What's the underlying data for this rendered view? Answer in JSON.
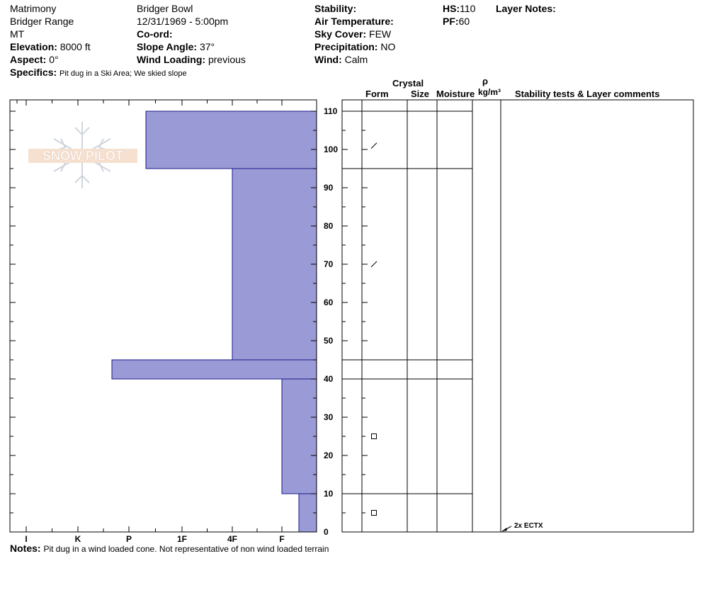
{
  "header": {
    "col1": {
      "location": "Matrimony",
      "range": "Bridger Range",
      "state": "MT",
      "elevation_label": "Elevation:",
      "elevation_value": "8000 ft",
      "aspect_label": "Aspect:",
      "aspect_value": "0°"
    },
    "col2": {
      "area": "Bridger Bowl",
      "datetime": "12/31/1969 - 5:00pm",
      "coord_label": "Co-ord:",
      "slope_label": "Slope Angle:",
      "slope_value": "37°",
      "wind_loading_label": "Wind Loading:",
      "wind_loading_value": "previous"
    },
    "col3": {
      "stability_label": "Stability:",
      "air_temp_label": "Air Temperature:",
      "sky_label": "Sky Cover:",
      "sky_value": "FEW",
      "precip_label": "Precipitation:",
      "precip_value": "NO",
      "wind_label": "Wind:",
      "wind_value": "Calm"
    },
    "col4": {
      "hs_label": "HS:",
      "hs_value": "110",
      "pf_label": "PF:",
      "pf_value": "60"
    },
    "layer_notes_label": "Layer Notes:",
    "specifics_label": "Specifics:",
    "specifics_value": "Pit dug in a Ski Area; We skied slope"
  },
  "logo_text": "SNOW PILOT",
  "table_headers": {
    "crystal": "Crystal",
    "form": "Form",
    "size": "Size",
    "moisture": "Moisture",
    "rho": "ρ",
    "density_unit": "kg/m³",
    "stability": "Stability tests & Layer comments"
  },
  "notes": {
    "label": "Notes:",
    "value": "Pit dug in a wind loaded cone. Not representative of non wind loaded terrain"
  },
  "chart_data": {
    "type": "bar",
    "title": "",
    "ylabel": "",
    "ylim": [
      0,
      113
    ],
    "hardness_scale": [
      "I",
      "K",
      "P",
      "1F",
      "4F",
      "F"
    ],
    "y_ticks": [
      0,
      10,
      20,
      30,
      40,
      50,
      60,
      70,
      80,
      90,
      100,
      110
    ],
    "hardness_layers": [
      {
        "bottom": 95,
        "top": 110,
        "hardness": "P+"
      },
      {
        "bottom": 45,
        "top": 95,
        "hardness": "4F"
      },
      {
        "bottom": 40,
        "top": 45,
        "hardness": "P-"
      },
      {
        "bottom": 10,
        "top": 40,
        "hardness": "F"
      },
      {
        "bottom": 0,
        "top": 10,
        "hardness": "F+"
      }
    ],
    "layer_boundaries": [
      110,
      95,
      45,
      40,
      10
    ],
    "crystal_symbols": [
      {
        "y": 101,
        "form": "decomposing-fragments"
      },
      {
        "y": 70,
        "form": "decomposing-fragments"
      },
      {
        "y": 25,
        "form": "faceted"
      },
      {
        "y": 5,
        "form": "faceted"
      }
    ],
    "stability_tests": [
      {
        "y": 0,
        "label": "2x ECTX"
      }
    ],
    "bar_color": "#9a9ad6"
  }
}
